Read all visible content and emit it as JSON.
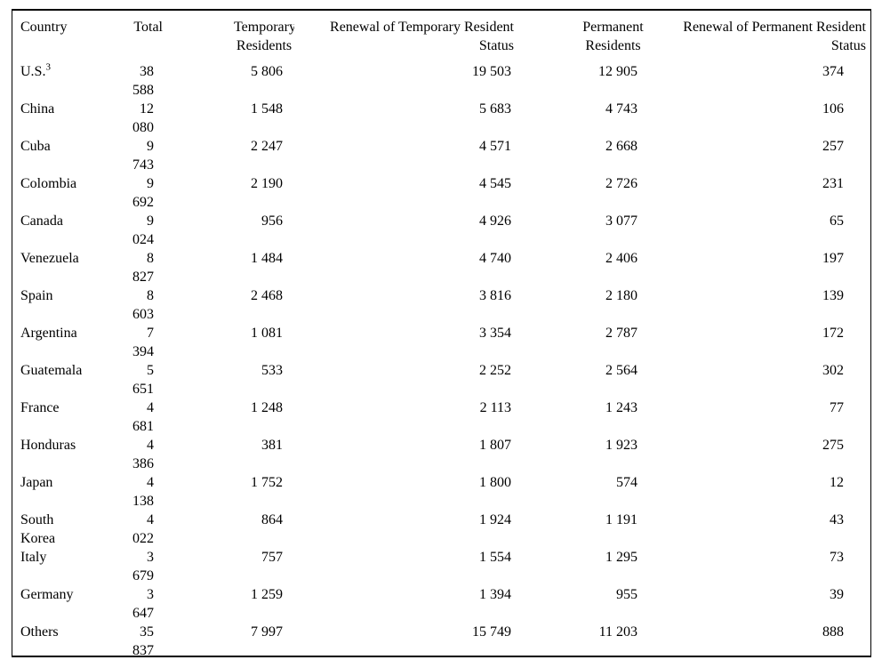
{
  "colors": {
    "background": "#ffffff",
    "text": "#000000",
    "table_border": "#000000"
  },
  "table": {
    "columns": [
      {
        "id": "country",
        "label": "Country"
      },
      {
        "id": "total",
        "label": "Total"
      },
      {
        "id": "temporary_residents",
        "label": "Temporary\nResidents"
      },
      {
        "id": "renewal_temporary",
        "label": "Renewal of Temporary Resident\nStatus"
      },
      {
        "id": "permanent_residents",
        "label": "Permanent\nResidents"
      },
      {
        "id": "renewal_permanent",
        "label": "Renewal of Permanent Resident\nStatus"
      }
    ],
    "rows": [
      {
        "country": "U.S.",
        "country_sup": "3",
        "total": "38\n588",
        "temporary_residents": "5 806",
        "renewal_temporary": "19 503",
        "permanent_residents": "12 905",
        "renewal_permanent": "374"
      },
      {
        "country": "China",
        "total": "12\n080",
        "temporary_residents": "1 548",
        "renewal_temporary": "5 683",
        "permanent_residents": "4 743",
        "renewal_permanent": "106"
      },
      {
        "country": "Cuba",
        "total": "9\n743",
        "temporary_residents": "2 247",
        "renewal_temporary": "4 571",
        "permanent_residents": "2 668",
        "renewal_permanent": "257"
      },
      {
        "country": "Colombia",
        "total": "9\n692",
        "temporary_residents": "2 190",
        "renewal_temporary": "4 545",
        "permanent_residents": "2 726",
        "renewal_permanent": "231"
      },
      {
        "country": "Canada",
        "total": "9\n024",
        "temporary_residents": "956",
        "renewal_temporary": "4 926",
        "permanent_residents": "3 077",
        "renewal_permanent": "65"
      },
      {
        "country": "Venezuela",
        "total": "8\n827",
        "temporary_residents": "1 484",
        "renewal_temporary": "4 740",
        "permanent_residents": "2 406",
        "renewal_permanent": "197"
      },
      {
        "country": "Spain",
        "total": "8\n603",
        "temporary_residents": "2 468",
        "renewal_temporary": "3 816",
        "permanent_residents": "2 180",
        "renewal_permanent": "139"
      },
      {
        "country": "Argentina",
        "total": "7\n394",
        "temporary_residents": "1 081",
        "renewal_temporary": "3 354",
        "permanent_residents": "2 787",
        "renewal_permanent": "172"
      },
      {
        "country": "Guatemala",
        "total": "5\n651",
        "temporary_residents": "533",
        "renewal_temporary": "2 252",
        "permanent_residents": "2 564",
        "renewal_permanent": "302"
      },
      {
        "country": "France",
        "total": "4\n681",
        "temporary_residents": "1 248",
        "renewal_temporary": "2 113",
        "permanent_residents": "1 243",
        "renewal_permanent": "77"
      },
      {
        "country": "Honduras",
        "total": "4\n386",
        "temporary_residents": "381",
        "renewal_temporary": "1 807",
        "permanent_residents": "1 923",
        "renewal_permanent": "275"
      },
      {
        "country": "Japan",
        "total": "4\n138",
        "temporary_residents": "1 752",
        "renewal_temporary": "1 800",
        "permanent_residents": "574",
        "renewal_permanent": "12"
      },
      {
        "country": "South\nKorea",
        "total": "4\n022",
        "temporary_residents": "864",
        "renewal_temporary": "1 924",
        "permanent_residents": "1 191",
        "renewal_permanent": "43"
      },
      {
        "country": "Italy",
        "total": "3\n679",
        "temporary_residents": "757",
        "renewal_temporary": "1 554",
        "permanent_residents": "1 295",
        "renewal_permanent": "73"
      },
      {
        "country": "Germany",
        "total": "3\n647",
        "temporary_residents": "1 259",
        "renewal_temporary": "1 394",
        "permanent_residents": "955",
        "renewal_permanent": "39"
      },
      {
        "country": "Others",
        "total": "35\n837",
        "temporary_residents": "7 997",
        "renewal_temporary": "15 749",
        "permanent_residents": "11 203",
        "renewal_permanent": "888"
      }
    ]
  }
}
